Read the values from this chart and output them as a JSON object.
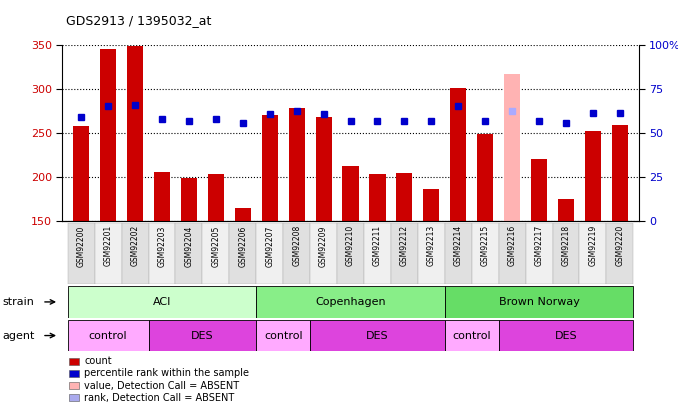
{
  "title": "GDS2913 / 1395032_at",
  "samples": [
    "GSM92200",
    "GSM92201",
    "GSM92202",
    "GSM92203",
    "GSM92204",
    "GSM92205",
    "GSM92206",
    "GSM92207",
    "GSM92208",
    "GSM92209",
    "GSM92210",
    "GSM92211",
    "GSM92212",
    "GSM92213",
    "GSM92214",
    "GSM92215",
    "GSM92216",
    "GSM92217",
    "GSM92218",
    "GSM92219",
    "GSM92220"
  ],
  "bar_values": [
    258,
    345,
    348,
    205,
    198,
    203,
    165,
    270,
    278,
    268,
    212,
    203,
    204,
    186,
    301,
    248,
    316,
    220,
    175,
    252,
    259
  ],
  "bar_colors": [
    "#cc0000",
    "#cc0000",
    "#cc0000",
    "#cc0000",
    "#cc0000",
    "#cc0000",
    "#cc0000",
    "#cc0000",
    "#cc0000",
    "#cc0000",
    "#cc0000",
    "#cc0000",
    "#cc0000",
    "#cc0000",
    "#cc0000",
    "#cc0000",
    "#ffb3b3",
    "#cc0000",
    "#cc0000",
    "#cc0000",
    "#cc0000"
  ],
  "dot_values": [
    268,
    280,
    281,
    265,
    263,
    265,
    261,
    271,
    275,
    271,
    263,
    263,
    263,
    263,
    280,
    263,
    275,
    263,
    261,
    272,
    272
  ],
  "dot_colors": [
    "#0000cc",
    "#0000cc",
    "#0000cc",
    "#0000cc",
    "#0000cc",
    "#0000cc",
    "#0000cc",
    "#0000cc",
    "#0000cc",
    "#0000cc",
    "#0000cc",
    "#0000cc",
    "#0000cc",
    "#0000cc",
    "#0000cc",
    "#0000cc",
    "#aaaaff",
    "#0000cc",
    "#0000cc",
    "#0000cc",
    "#0000cc"
  ],
  "ymin": 150,
  "ymax": 350,
  "y_left_ticks": [
    150,
    200,
    250,
    300,
    350
  ],
  "y_right_tick_vals": [
    0,
    25,
    50,
    75,
    100
  ],
  "y_right_labels": [
    "0",
    "25",
    "50",
    "75",
    "100%"
  ],
  "strain_groups": [
    {
      "label": "ACI",
      "start": 0,
      "end": 6
    },
    {
      "label": "Copenhagen",
      "start": 7,
      "end": 13
    },
    {
      "label": "Brown Norway",
      "start": 14,
      "end": 20
    }
  ],
  "agent_groups": [
    {
      "label": "control",
      "start": 0,
      "end": 2,
      "color": "#ffaaff"
    },
    {
      "label": "DES",
      "start": 3,
      "end": 6,
      "color": "#dd44dd"
    },
    {
      "label": "control",
      "start": 7,
      "end": 8,
      "color": "#ffaaff"
    },
    {
      "label": "DES",
      "start": 9,
      "end": 13,
      "color": "#dd44dd"
    },
    {
      "label": "control",
      "start": 14,
      "end": 15,
      "color": "#ffaaff"
    },
    {
      "label": "DES",
      "start": 16,
      "end": 20,
      "color": "#dd44dd"
    }
  ],
  "strain_aci_color": "#ccffcc",
  "strain_cop_color": "#88ee88",
  "strain_bn_color": "#66dd66",
  "legend_items": [
    {
      "label": "count",
      "color": "#cc0000"
    },
    {
      "label": "percentile rank within the sample",
      "color": "#0000cc"
    },
    {
      "label": "value, Detection Call = ABSENT",
      "color": "#ffb3b3"
    },
    {
      "label": "rank, Detection Call = ABSENT",
      "color": "#aaaaee"
    }
  ],
  "bar_width": 0.6,
  "dot_markersize": 4.5,
  "xlabel_fontsize": 5.5,
  "ylabel_fontsize": 8,
  "title_fontsize": 9
}
